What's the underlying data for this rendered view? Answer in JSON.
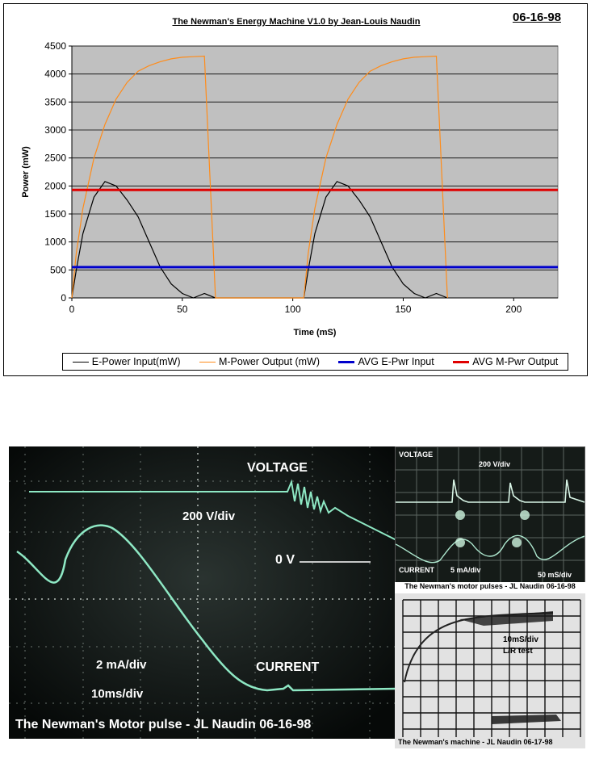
{
  "chart": {
    "title": "The Newman's Energy Machine V1.0 by Jean-Louis Naudin",
    "date": "06-16-98"
  },
  "chart_data": {
    "type": "line",
    "xlabel": "Time (mS)",
    "ylabel": "Power (mW)",
    "xlim": [
      0,
      220
    ],
    "ylim": [
      0,
      4500
    ],
    "xticks": [
      0,
      50,
      100,
      150,
      200
    ],
    "yticks": [
      0,
      500,
      1000,
      1500,
      2000,
      2500,
      3000,
      3500,
      4000,
      4500
    ],
    "grid": "horizontal",
    "background": "#c0c0c0",
    "legend_position": "bottom",
    "series": [
      {
        "name": "E-Power Input(mW)",
        "color": "#000000",
        "x": [
          0,
          2,
          5,
          10,
          15,
          20,
          25,
          30,
          35,
          40,
          45,
          50,
          55,
          60,
          65,
          105,
          107,
          110,
          115,
          120,
          125,
          130,
          135,
          140,
          145,
          150,
          155,
          160,
          165,
          170
        ],
        "y": [
          0,
          500,
          1150,
          1800,
          2080,
          2000,
          1750,
          1450,
          1000,
          550,
          250,
          80,
          0,
          80,
          0,
          0,
          500,
          1150,
          1800,
          2080,
          2000,
          1750,
          1450,
          1000,
          550,
          250,
          80,
          0,
          80,
          0
        ]
      },
      {
        "name": "M-Power Output (mW)",
        "color": "#ff8c1a",
        "x": [
          0,
          2,
          5,
          10,
          15,
          20,
          25,
          30,
          35,
          40,
          45,
          50,
          55,
          60,
          65,
          105,
          107,
          110,
          115,
          120,
          125,
          130,
          135,
          140,
          145,
          150,
          155,
          160,
          165,
          170
        ],
        "y": [
          0,
          800,
          1600,
          2500,
          3100,
          3550,
          3850,
          4050,
          4150,
          4220,
          4270,
          4300,
          4310,
          4320,
          0,
          0,
          800,
          1600,
          2500,
          3100,
          3550,
          3850,
          4050,
          4150,
          4220,
          4270,
          4300,
          4310,
          4320,
          0
        ]
      },
      {
        "name": "AVG E-Pwr Input",
        "color": "#0000cc",
        "x": [
          0,
          220
        ],
        "y": [
          550,
          550
        ]
      },
      {
        "name": "AVG M-Pwr Output",
        "color": "#e00000",
        "x": [
          0,
          220
        ],
        "y": [
          1930,
          1930
        ]
      }
    ]
  },
  "scope_main": {
    "voltage_label": "VOLTAGE",
    "volt_div": "200 V/div",
    "zero_v": "0 V",
    "current_label": "CURRENT",
    "amp_div": "2 mA/div",
    "time_div": "10ms/div",
    "caption": "The Newman's Motor pulse - JL Naudin 06-16-98"
  },
  "inset_a": {
    "voltage_label": "VOLTAGE",
    "volt_div": "200 V/div",
    "current_label": "CURRENT",
    "amp_div": "5 mA/div",
    "time_div": "50 mS/div",
    "caption": "The Newman's motor pulses - JL Naudin  06-16-98"
  },
  "inset_b": {
    "time_div": "10mS/div",
    "test_label": "L/R test",
    "caption": "The Newman's machine - JL Naudin  06-17-98"
  }
}
